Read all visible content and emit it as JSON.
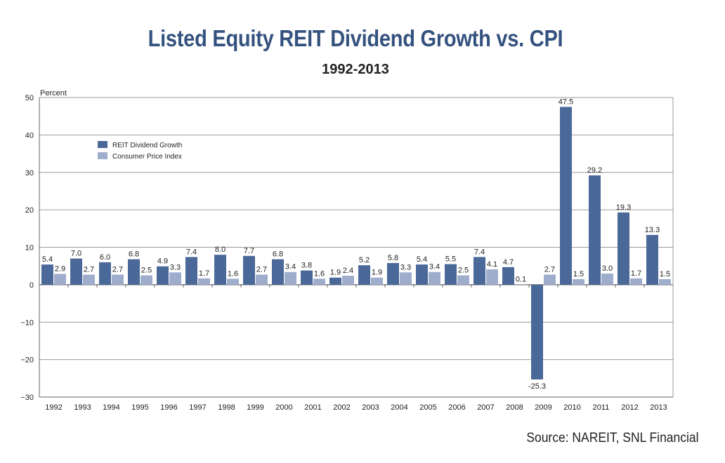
{
  "chart_data": {
    "type": "bar",
    "title": "Listed Equity REIT Dividend Growth vs. CPI",
    "subtitle": "1992-2013",
    "ylabel": "Percent",
    "xlabel": "",
    "ylim": [
      -30,
      50
    ],
    "yticks": [
      "50",
      "40",
      "30",
      "20",
      "10",
      "0",
      "−10",
      "−20",
      "−30"
    ],
    "grid": true,
    "legend_position": "top-left",
    "categories": [
      "1992",
      "1993",
      "1994",
      "1995",
      "1996",
      "1997",
      "1998",
      "1999",
      "2000",
      "2001",
      "2002",
      "2003",
      "2004",
      "2005",
      "2006",
      "2007",
      "2008",
      "2009",
      "2010",
      "2011",
      "2012",
      "2013"
    ],
    "series": [
      {
        "name": "REIT Dividend Growth",
        "color": "#4a6898",
        "values": [
          5.4,
          7.0,
          6.0,
          6.8,
          4.9,
          7.4,
          8.0,
          7.7,
          6.8,
          3.8,
          1.9,
          5.2,
          5.8,
          5.4,
          5.5,
          7.4,
          4.7,
          -25.3,
          47.5,
          29.2,
          19.3,
          13.3
        ],
        "labels": [
          "5.4",
          "7.0",
          "6.0",
          "6.8",
          "4.9",
          "7.4",
          "8.0",
          "7.7",
          "6.8",
          "3.8",
          "1.9",
          "5.2",
          "5.8",
          "5.4",
          "5.5",
          "7.4",
          "4.7",
          "-25.3",
          "47.5",
          "29.2",
          "19.3",
          "13.3"
        ]
      },
      {
        "name": "Consumer Price Index",
        "color": "#9fadcd",
        "values": [
          2.9,
          2.7,
          2.7,
          2.5,
          3.3,
          1.7,
          1.6,
          2.7,
          3.4,
          1.6,
          2.4,
          1.9,
          3.3,
          3.4,
          2.5,
          4.1,
          0.1,
          2.7,
          1.5,
          3.0,
          1.7,
          1.5
        ],
        "labels": [
          "2.9",
          "2.7",
          "2.7",
          "2.5",
          "3.3",
          "1.7",
          "1.6",
          "2.7",
          "3.4",
          "1.6",
          "2.4",
          "1.9",
          "3.3",
          "3.4",
          "2.5",
          "4.1",
          "0.1",
          "2.7",
          "1.5",
          "3.0",
          "1.7",
          "1.5"
        ]
      }
    ],
    "source": "Source: NAREIT, SNL Financial"
  }
}
